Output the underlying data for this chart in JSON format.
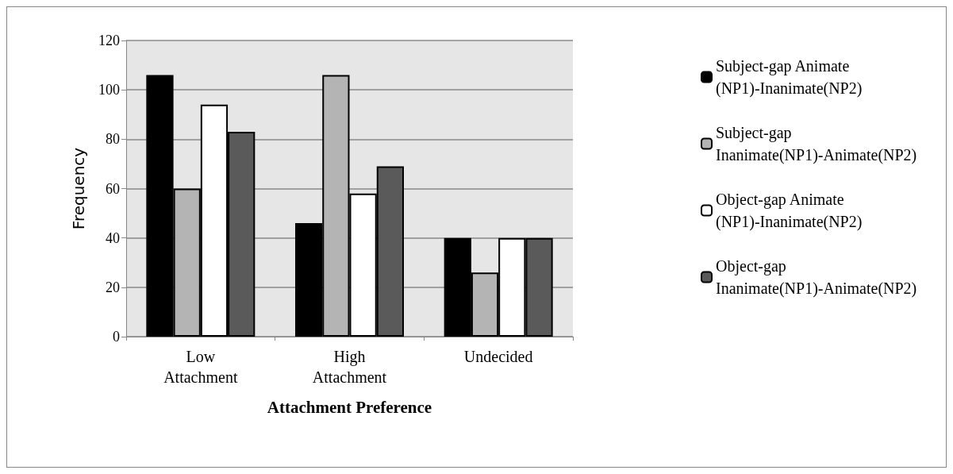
{
  "chart_data": {
    "type": "bar",
    "xlabel": "Attachment Preference",
    "ylabel": "Frequency",
    "categories": [
      "Low\nAttachment",
      "High\nAttachment",
      "Undecided"
    ],
    "series": [
      {
        "name": "Subject-gap Animate (NP1)-Inanimate(NP2)",
        "color": "#000000",
        "values": [
          106,
          46,
          40
        ]
      },
      {
        "name": "Subject-gap Inanimate(NP1)-Animate(NP2)",
        "color": "#b4b4b4",
        "values": [
          60,
          106,
          26
        ]
      },
      {
        "name": "Object-gap Animate (NP1)-Inanimate(NP2)",
        "color": "#ffffff",
        "values": [
          94,
          58,
          40
        ]
      },
      {
        "name": "Object-gap Inanimate(NP1)-Animate(NP2)",
        "color": "#5a5a5a",
        "values": [
          83,
          69,
          40
        ]
      }
    ],
    "ylim": [
      0,
      120
    ],
    "yticks": [
      0,
      20,
      40,
      60,
      80,
      100,
      120
    ],
    "grid": "y",
    "legend": "right"
  }
}
